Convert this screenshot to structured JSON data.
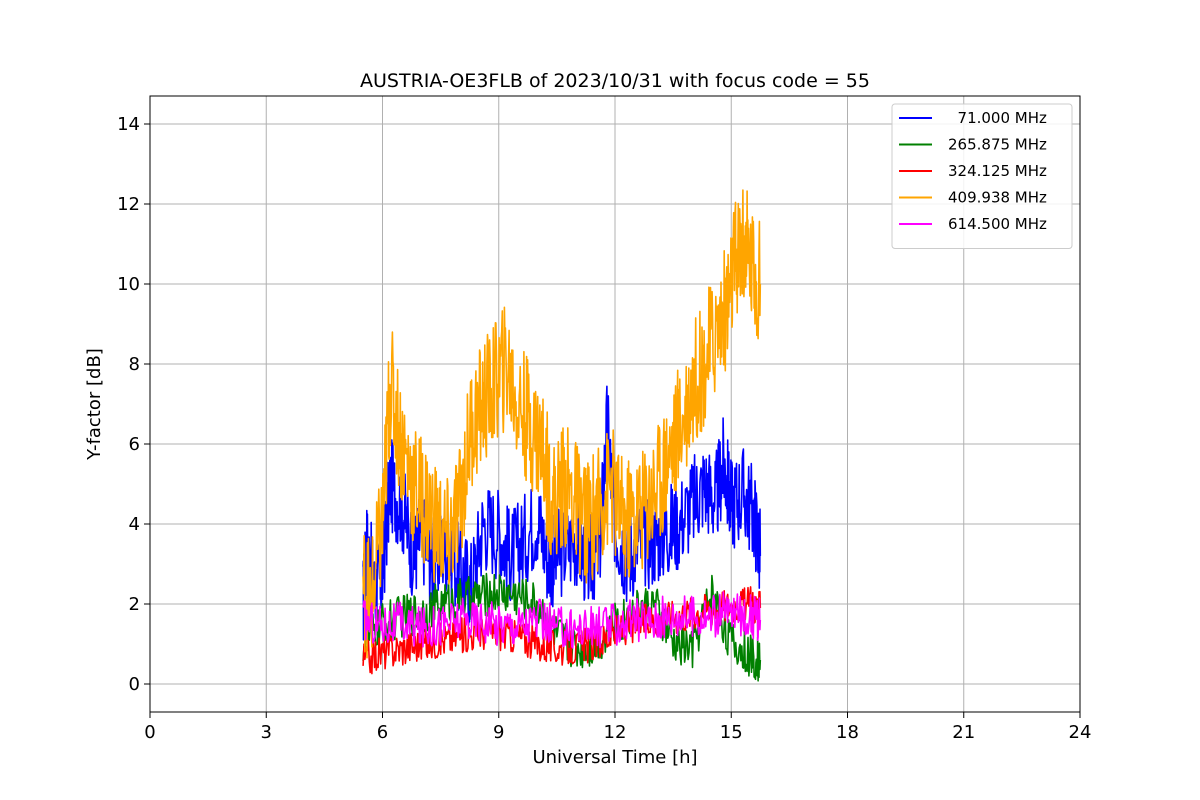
{
  "chart_data": {
    "type": "line",
    "title": "AUSTRIA-OE3FLB of 2023/10/31 with focus code = 55",
    "xlabel": "Universal Time [h]",
    "ylabel": "Y-factor [dB]",
    "xlim": [
      0,
      24
    ],
    "ylim": [
      -0.7,
      14.7
    ],
    "xticks": [
      0,
      3,
      6,
      9,
      12,
      15,
      18,
      21,
      24
    ],
    "yticks": [
      0,
      2,
      4,
      6,
      8,
      10,
      12,
      14
    ],
    "grid": true,
    "legend_position": "top-right",
    "series": [
      {
        "name": "71.000 MHz",
        "legend_label": "  71.000 MHz",
        "color": "#0000ff",
        "x": [
          5.5,
          5.6,
          5.8,
          6.0,
          6.2,
          6.5,
          6.8,
          7.0,
          7.3,
          7.6,
          8.0,
          8.3,
          8.6,
          9.0,
          9.3,
          9.6,
          10.0,
          10.3,
          10.6,
          11.0,
          11.3,
          11.6,
          11.8,
          12.0,
          12.3,
          12.6,
          13.0,
          13.3,
          13.6,
          14.0,
          14.3,
          14.6,
          14.8,
          15.0,
          15.3,
          15.6,
          15.75
        ],
        "y": [
          2.0,
          3.5,
          2.3,
          2.8,
          5.0,
          4.5,
          3.2,
          3.8,
          3.0,
          3.5,
          2.8,
          2.5,
          4.0,
          3.8,
          3.2,
          3.5,
          4.2,
          3.0,
          3.3,
          3.6,
          3.0,
          3.4,
          6.5,
          4.0,
          3.2,
          3.5,
          3.6,
          3.8,
          4.0,
          4.5,
          5.0,
          4.6,
          5.5,
          4.5,
          4.8,
          4.2,
          3.2
        ]
      },
      {
        "name": "265.875 MHz",
        "legend_label": "265.875 MHz",
        "color": "#008000",
        "x": [
          5.5,
          6.0,
          6.5,
          7.0,
          7.5,
          8.0,
          8.5,
          9.0,
          9.5,
          10.0,
          10.5,
          11.0,
          11.5,
          12.0,
          12.5,
          13.0,
          13.5,
          14.0,
          14.5,
          15.0,
          15.5,
          15.75
        ],
        "y": [
          1.0,
          1.5,
          1.7,
          1.8,
          2.0,
          2.1,
          2.2,
          2.3,
          2.2,
          2.0,
          1.2,
          0.9,
          1.0,
          1.5,
          1.8,
          2.0,
          1.0,
          0.9,
          2.3,
          1.0,
          0.7,
          0.6
        ]
      },
      {
        "name": "324.125 MHz",
        "legend_label": "324.125 MHz",
        "color": "#ff0000",
        "x": [
          5.5,
          6.0,
          6.5,
          7.0,
          7.5,
          8.0,
          8.5,
          9.0,
          9.5,
          10.0,
          10.5,
          11.0,
          11.5,
          12.0,
          12.5,
          13.0,
          13.5,
          14.0,
          14.5,
          15.0,
          15.5,
          15.75
        ],
        "y": [
          0.6,
          0.8,
          0.9,
          1.0,
          1.1,
          1.2,
          1.3,
          1.3,
          1.2,
          1.0,
          0.9,
          0.9,
          1.0,
          1.3,
          1.5,
          1.6,
          1.7,
          1.8,
          1.9,
          2.0,
          2.0,
          1.9
        ]
      },
      {
        "name": "409.938 MHz",
        "legend_label": "409.938 MHz",
        "color": "#ffa500",
        "x": [
          5.5,
          5.7,
          6.0,
          6.2,
          6.5,
          6.8,
          7.1,
          7.4,
          7.7,
          8.0,
          8.3,
          8.6,
          8.9,
          9.2,
          9.5,
          9.8,
          10.1,
          10.4,
          10.7,
          11.0,
          11.3,
          11.6,
          11.9,
          12.2,
          12.5,
          12.8,
          13.1,
          13.4,
          13.7,
          14.0,
          14.3,
          14.6,
          14.9,
          15.1,
          15.3,
          15.5,
          15.75
        ],
        "y": [
          2.5,
          2.0,
          4.0,
          7.5,
          6.0,
          5.0,
          4.5,
          4.0,
          3.5,
          4.5,
          6.5,
          7.0,
          7.5,
          8.0,
          7.0,
          6.5,
          6.0,
          4.5,
          5.0,
          4.5,
          4.0,
          4.5,
          5.0,
          4.0,
          4.2,
          4.5,
          5.0,
          5.8,
          6.5,
          7.5,
          8.0,
          8.8,
          9.5,
          10.5,
          11.0,
          10.5,
          10.0
        ]
      },
      {
        "name": "614.500 MHz",
        "legend_label": "614.500 MHz",
        "color": "#ff00ff",
        "x": [
          5.5,
          6.0,
          6.5,
          7.0,
          7.5,
          8.0,
          8.5,
          9.0,
          9.5,
          10.0,
          10.5,
          11.0,
          11.5,
          12.0,
          12.5,
          13.0,
          13.5,
          14.0,
          14.5,
          15.0,
          15.5,
          15.75
        ],
        "y": [
          1.6,
          1.5,
          1.5,
          1.4,
          1.5,
          1.6,
          1.6,
          1.5,
          1.5,
          1.6,
          1.4,
          1.4,
          1.4,
          1.5,
          1.6,
          1.6,
          1.7,
          1.7,
          1.7,
          1.8,
          1.7,
          1.6
        ]
      }
    ]
  }
}
